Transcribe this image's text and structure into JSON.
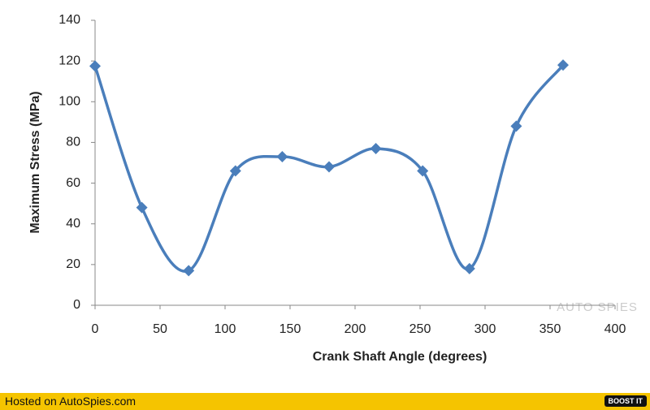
{
  "chart_data": {
    "type": "line",
    "x_label": "Crank Shaft Angle (degrees)",
    "y_label": "Maximum Stress (MPa)",
    "x": [
      0,
      36,
      72,
      108,
      144,
      180,
      216,
      252,
      288,
      324,
      360
    ],
    "series": [
      {
        "color": "#4a7ebb",
        "values": [
          117.5,
          48,
          17,
          66,
          73,
          68,
          77,
          66,
          18,
          88,
          118
        ]
      }
    ],
    "xlim": [
      0,
      400
    ],
    "xticks": [
      0,
      50,
      100,
      150,
      200,
      250,
      300,
      350,
      400
    ],
    "ylim": [
      0,
      140
    ],
    "yticks": [
      0,
      20,
      40,
      60,
      80,
      100,
      120,
      140
    ],
    "grid": false,
    "smooth": true
  },
  "watermark": "AUTO SPIES",
  "footer": {
    "text": "Hosted on AutoSpies.com",
    "button": "BOOST IT"
  }
}
